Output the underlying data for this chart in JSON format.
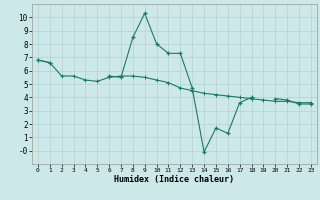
{
  "xlabel": "Humidex (Indice chaleur)",
  "background_color": "#cce8e8",
  "grid_color": "#b8d4d4",
  "line_color": "#1a7a6a",
  "xlim": [
    -0.5,
    23.5
  ],
  "ylim": [
    -1,
    11
  ],
  "xticks": [
    0,
    1,
    2,
    3,
    4,
    5,
    6,
    7,
    8,
    9,
    10,
    11,
    12,
    13,
    14,
    15,
    16,
    17,
    18,
    19,
    20,
    21,
    22,
    23
  ],
  "yticks": [
    0,
    1,
    2,
    3,
    4,
    5,
    6,
    7,
    8,
    9,
    10
  ],
  "ytick_labels": [
    "-0",
    "1",
    "2",
    "3",
    "4",
    "5",
    "6",
    "7",
    "8",
    "9",
    "10"
  ],
  "series1_x": [
    0,
    1,
    2,
    3,
    4,
    5,
    6,
    7,
    8,
    9,
    10,
    11,
    12,
    13,
    14,
    15,
    16,
    17,
    18,
    19,
    20,
    21,
    22,
    23
  ],
  "series1_y": [
    6.8,
    6.6,
    5.6,
    5.6,
    5.3,
    5.2,
    5.5,
    5.6,
    5.6,
    5.5,
    5.3,
    5.1,
    4.7,
    4.5,
    4.3,
    4.2,
    4.1,
    4.0,
    3.9,
    3.8,
    3.7,
    3.7,
    3.6,
    3.6
  ],
  "series2_segments": [
    {
      "x": [
        0,
        1
      ],
      "y": [
        6.8,
        6.6
      ]
    },
    {
      "x": [
        6,
        7,
        8,
        9,
        10,
        11,
        12,
        13,
        14,
        15,
        16,
        17,
        18
      ],
      "y": [
        5.6,
        5.5,
        8.5,
        10.3,
        8.0,
        7.3,
        7.3,
        4.7,
        -0.1,
        1.7,
        1.3,
        3.6,
        4.0
      ]
    },
    {
      "x": [
        20,
        21,
        22,
        23
      ],
      "y": [
        3.9,
        3.8,
        3.5,
        3.5
      ]
    }
  ]
}
